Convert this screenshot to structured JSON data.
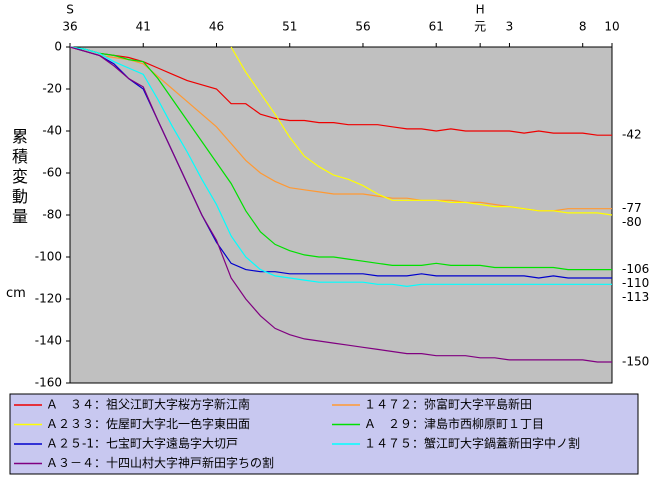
{
  "chart_data": {
    "type": "line",
    "y_label": "累積変動量",
    "y_unit": "cm",
    "era_labels": [
      {
        "text": "S",
        "x": 36
      },
      {
        "text": "H",
        "x": 64
      }
    ],
    "x": [
      36,
      37,
      38,
      39,
      40,
      41,
      42,
      43,
      44,
      45,
      46,
      47,
      48,
      49,
      50,
      51,
      52,
      53,
      54,
      55,
      56,
      57,
      58,
      59,
      60,
      61,
      62,
      63,
      64,
      65,
      66,
      67,
      68,
      69,
      70,
      71,
      72,
      73
    ],
    "xlim": [
      36,
      73
    ],
    "xticks": [
      36,
      41,
      46,
      51,
      56,
      61,
      {
        "value": 64,
        "label": "元"
      },
      {
        "value": 66,
        "label": "3"
      },
      {
        "value": 71,
        "label": "8"
      },
      {
        "value": 73,
        "label": "10"
      }
    ],
    "ylim": [
      -160,
      0
    ],
    "yticks": [
      0,
      -20,
      -40,
      -60,
      -80,
      -100,
      -120,
      -140,
      -160
    ],
    "background": "#c0c0c0",
    "series": [
      {
        "name": "Ａ　３４：祖父江町大字桜方字新江南",
        "color": "#ee0000",
        "values": [
          0,
          -1,
          -3,
          -4,
          -5,
          -7,
          -10,
          -13,
          -16,
          -18,
          -20,
          -27,
          -27,
          -32,
          -34,
          -35,
          -35,
          -36,
          -36,
          -37,
          -37,
          -37,
          -38,
          -39,
          -39,
          -40,
          -39,
          -40,
          -40,
          -40,
          -40,
          -41,
          -40,
          -41,
          -41,
          -41,
          -42,
          -42
        ]
      },
      {
        "name": "１４７２：弥富町大字平島新田",
        "color": "#ff9933",
        "values": [
          0,
          -2,
          -4,
          -5,
          -6,
          -8,
          -14,
          -20,
          -26,
          -32,
          -38,
          -46,
          -54,
          -60,
          -64,
          -67,
          -68,
          -69,
          -70,
          -70,
          -70,
          -71,
          -72,
          -72,
          -73,
          -73,
          -73,
          -74,
          -74,
          -75,
          -76,
          -77,
          -78,
          -78,
          -77,
          -77,
          -77,
          -77
        ]
      },
      {
        "name": "Ａ２３３：佐屋町大字北一色字東田面",
        "color": "#ffff00",
        "values": [
          null,
          null,
          null,
          null,
          null,
          null,
          null,
          null,
          null,
          null,
          null,
          0,
          -12,
          -22,
          -32,
          -43,
          -52,
          -57,
          -61,
          -63,
          -66,
          -70,
          -73,
          -73,
          -73,
          -73,
          -74,
          -74,
          -75,
          -76,
          -76,
          -77,
          -78,
          -78,
          -79,
          -79,
          -79,
          -80
        ]
      },
      {
        "name": "Ａ　２９：津島市西柳原町１丁目",
        "color": "#00e000",
        "values": [
          0,
          -1,
          -3,
          -4,
          -6,
          -7,
          -15,
          -25,
          -35,
          -45,
          -55,
          -65,
          -78,
          -88,
          -94,
          -97,
          -99,
          -100,
          -100,
          -101,
          -102,
          -103,
          -104,
          -104,
          -104,
          -103,
          -104,
          -104,
          -104,
          -105,
          -105,
          -105,
          -105,
          -105,
          -106,
          -106,
          -106,
          -106
        ]
      },
      {
        "name": "Ａ２５-1：七宝町大字遠島字大切戸",
        "color": "#0000cc",
        "values": [
          0,
          -2,
          -4,
          -8,
          -15,
          -20,
          -35,
          -50,
          -65,
          -80,
          -93,
          -103,
          -106,
          -107,
          -107,
          -108,
          -108,
          -108,
          -108,
          -108,
          -108,
          -109,
          -109,
          -109,
          -108,
          -109,
          -109,
          -109,
          -109,
          -109,
          -109,
          -109,
          -110,
          -109,
          -110,
          -110,
          -110,
          -110
        ]
      },
      {
        "name": "１４７５：蟹江町大字鍋蓋新田字中ノ割",
        "color": "#00ffff",
        "values": [
          0,
          -1,
          -3,
          -7,
          -10,
          -13,
          -25,
          -38,
          -50,
          -63,
          -75,
          -90,
          -100,
          -106,
          -109,
          -110,
          -111,
          -112,
          -112,
          -112,
          -112,
          -113,
          -113,
          -114,
          -113,
          -113,
          -113,
          -113,
          -113,
          -113,
          -113,
          -113,
          -113,
          -113,
          -113,
          -113,
          -113,
          -113
        ]
      },
      {
        "name": "Ａ３－４：十四山村大字神戸新田字ちの割",
        "color": "#800080",
        "values": [
          0,
          -2,
          -4,
          -9,
          -15,
          -19,
          -35,
          -50,
          -65,
          -80,
          -92,
          -110,
          -120,
          -128,
          -134,
          -137,
          -139,
          -140,
          -141,
          -142,
          -143,
          -144,
          -145,
          -146,
          -146,
          -147,
          -147,
          -147,
          -148,
          -148,
          -149,
          -149,
          -149,
          -149,
          -149,
          -149,
          -150,
          -150
        ]
      }
    ]
  }
}
